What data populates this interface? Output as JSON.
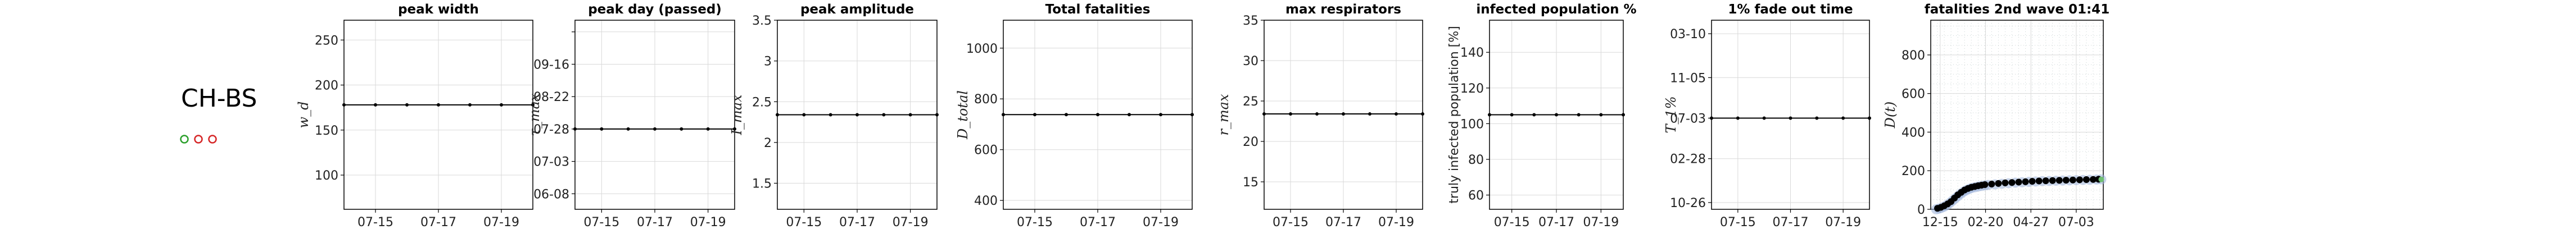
{
  "region": "CH-BS",
  "legend_markers": [
    {
      "color": "#2ca02c"
    },
    {
      "color": "#d62728"
    },
    {
      "color": "#d62728"
    }
  ],
  "chart_data": [
    {
      "type": "line",
      "title": "peak width",
      "ylabel": "$w_d$",
      "ylabel_display": "w_d",
      "x": [
        "07-14",
        "07-15",
        "07-16",
        "07-17",
        "07-18",
        "07-19",
        "07-20"
      ],
      "xticks": [
        "07-15",
        "07-17",
        "07-19"
      ],
      "ylim": [
        62,
        272
      ],
      "yticks": [
        100,
        150,
        200,
        250
      ],
      "yticklabels": [
        "100",
        "150",
        "200",
        "250"
      ],
      "series": [
        {
          "values": [
            178,
            178,
            178,
            178,
            178,
            178,
            178
          ]
        }
      ],
      "grid": true
    },
    {
      "type": "line",
      "title": "peak day (passed)",
      "ylabel": "$\\tau_{max}$",
      "ylabel_display": "τ_max",
      "x": [
        "07-14",
        "07-15",
        "07-16",
        "07-17",
        "07-18",
        "07-19",
        "07-20"
      ],
      "xticks": [
        "07-15",
        "07-17",
        "07-19"
      ],
      "ylim": [
        -62,
        84
      ],
      "yticks": [
        -50,
        -25,
        0,
        25,
        50,
        75
      ],
      "yticklabels": [
        "06-08",
        "07-03",
        "07-28",
        "08-22",
        "09-16",
        ""
      ],
      "series": [
        {
          "values": [
            0,
            0,
            0,
            0,
            0,
            0,
            0
          ]
        }
      ],
      "grid": true
    },
    {
      "type": "line",
      "title": "peak amplitude",
      "ylabel": "$I_{max}$",
      "ylabel_display": "I_max",
      "x": [
        "07-14",
        "07-15",
        "07-16",
        "07-17",
        "07-18",
        "07-19",
        "07-20"
      ],
      "xticks": [
        "07-15",
        "07-17",
        "07-19"
      ],
      "ylim": [
        1.18,
        3.5
      ],
      "yticks": [
        1.5,
        2.0,
        2.5,
        3.0,
        3.5
      ],
      "yticklabels": [
        "1.5",
        "2",
        "2.5",
        "3",
        "3.5"
      ],
      "series": [
        {
          "values": [
            2.34,
            2.34,
            2.34,
            2.34,
            2.34,
            2.34,
            2.34
          ]
        }
      ],
      "grid": true
    },
    {
      "type": "line",
      "title": "Total fatalities",
      "ylabel": "$D_{total}$",
      "ylabel_display": "D_total",
      "x": [
        "07-14",
        "07-15",
        "07-16",
        "07-17",
        "07-18",
        "07-19",
        "07-20"
      ],
      "xticks": [
        "07-15",
        "07-17",
        "07-19"
      ],
      "ylim": [
        365,
        1110
      ],
      "yticks": [
        400,
        600,
        800,
        1000
      ],
      "yticklabels": [
        "400",
        "600",
        "800",
        "1000"
      ],
      "series": [
        {
          "values": [
            738,
            738,
            738,
            738,
            738,
            738,
            738
          ]
        }
      ],
      "grid": true
    },
    {
      "type": "line",
      "title": "max respirators",
      "ylabel": "$r_{max}$",
      "ylabel_display": "r_max",
      "x": [
        "07-14",
        "07-15",
        "07-16",
        "07-17",
        "07-18",
        "07-19",
        "07-20"
      ],
      "xticks": [
        "07-15",
        "07-17",
        "07-19"
      ],
      "ylim": [
        11.6,
        35
      ],
      "yticks": [
        15,
        20,
        25,
        30,
        35
      ],
      "yticklabels": [
        "15",
        "20",
        "25",
        "30",
        "35"
      ],
      "series": [
        {
          "values": [
            23.4,
            23.4,
            23.4,
            23.4,
            23.4,
            23.4,
            23.4
          ]
        }
      ],
      "grid": true
    },
    {
      "type": "line",
      "title": "infected population %",
      "ylabel": "truly infected population [%]",
      "ylabel_display": "truly infected population [%]",
      "x": [
        "07-14",
        "07-15",
        "07-16",
        "07-17",
        "07-18",
        "07-19",
        "07-20"
      ],
      "xticks": [
        "07-15",
        "07-17",
        "07-19"
      ],
      "ylim": [
        52,
        158
      ],
      "yticks": [
        60,
        80,
        100,
        120,
        140
      ],
      "yticklabels": [
        "60",
        "80",
        "100",
        "120",
        "140"
      ],
      "series": [
        {
          "values": [
            105,
            105,
            105,
            105,
            105,
            105,
            105
          ]
        }
      ],
      "grid": true
    },
    {
      "type": "line",
      "title": "1% fade out time",
      "ylabel": "$T_{1\\%}$",
      "ylabel_display": "T_1%",
      "x": [
        "07-14",
        "07-15",
        "07-16",
        "07-17",
        "07-18",
        "07-19",
        "07-20"
      ],
      "xticks": [
        "07-15",
        "07-17",
        "07-19"
      ],
      "ylim": [
        -135,
        145
      ],
      "yticks": [
        -125,
        -60,
        0,
        60,
        125
      ],
      "yticklabels": [
        "10-26",
        "02-28",
        "07-03",
        "11-05",
        "03-10"
      ],
      "series": [
        {
          "values": [
            0,
            0,
            0,
            0,
            0,
            0,
            0
          ]
        }
      ],
      "grid": true
    },
    {
      "type": "scatter",
      "title": "fatalities 2nd wave 01:41",
      "ylabel": "$D(t)$",
      "ylabel_display": "D(t)",
      "xticks": [
        "12-15",
        "02-20",
        "04-27",
        "07-03"
      ],
      "xtick_values": [
        4,
        71,
        138,
        205
      ],
      "xlim": [
        -10,
        245
      ],
      "ylim": [
        0,
        980
      ],
      "yticks": [
        0,
        200,
        400,
        600,
        800
      ],
      "yticklabels": [
        "0",
        "200",
        "400",
        "600",
        "800"
      ],
      "series": [
        {
          "values": [
            [
              0,
              5
            ],
            [
              5,
              10
            ],
            [
              10,
              18
            ],
            [
              15,
              28
            ],
            [
              20,
              40
            ],
            [
              25,
              58
            ],
            [
              30,
              75
            ],
            [
              35,
              88
            ],
            [
              40,
              100
            ],
            [
              45,
              108
            ],
            [
              50,
              114
            ],
            [
              55,
              118
            ],
            [
              60,
              122
            ],
            [
              65,
              125
            ],
            [
              70,
              128
            ],
            [
              80,
              131
            ],
            [
              90,
              134
            ],
            [
              100,
              137
            ],
            [
              110,
              139
            ],
            [
              120,
              141
            ],
            [
              130,
              143
            ],
            [
              140,
              145
            ],
            [
              150,
              147
            ],
            [
              160,
              148
            ],
            [
              170,
              149
            ],
            [
              180,
              150
            ],
            [
              190,
              151
            ],
            [
              200,
              152
            ],
            [
              210,
              153
            ],
            [
              220,
              154
            ],
            [
              230,
              155
            ],
            [
              238,
              156
            ]
          ]
        },
        {
          "values": [
            [
              -2,
              0
            ],
            [
              2,
              3
            ],
            [
              6,
              8
            ],
            [
              10,
              14
            ],
            [
              14,
              22
            ],
            [
              18,
              32
            ],
            [
              22,
              44
            ],
            [
              26,
              56
            ],
            [
              30,
              68
            ],
            [
              34,
              80
            ],
            [
              38,
              90
            ],
            [
              42,
              98
            ],
            [
              46,
              104
            ],
            [
              50,
              110
            ],
            [
              55,
              114
            ],
            [
              60,
              118
            ],
            [
              65,
              121
            ],
            [
              70,
              124
            ],
            [
              75,
              126
            ],
            [
              85,
              129
            ],
            [
              95,
              132
            ],
            [
              105,
              135
            ],
            [
              115,
              138
            ],
            [
              125,
              140
            ],
            [
              135,
              142
            ],
            [
              145,
              144
            ],
            [
              155,
              146
            ],
            [
              165,
              147
            ],
            [
              175,
              148
            ],
            [
              185,
              149
            ],
            [
              195,
              150
            ],
            [
              205,
              151
            ],
            [
              215,
              152
            ],
            [
              225,
              153
            ],
            [
              235,
              154
            ],
            [
              242,
              155
            ]
          ]
        }
      ],
      "grid": true
    }
  ]
}
